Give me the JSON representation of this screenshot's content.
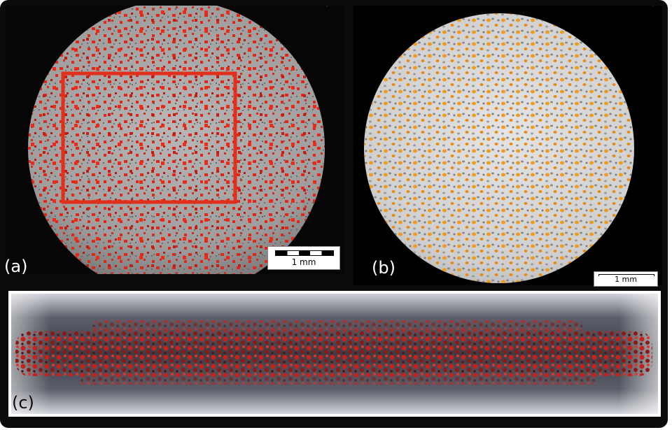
{
  "panels": {
    "a": {
      "label": "(a)",
      "scale_label": "1 mm",
      "particle_color": "#e22618",
      "roi_color": "#e0301c"
    },
    "b": {
      "label": "(b)",
      "scale_label": "1 mm",
      "particle_color": "#f29a1c"
    },
    "c": {
      "label": "(c)",
      "particle_color": "#c8201a"
    }
  },
  "icons": [
    "scalebar-icon"
  ]
}
